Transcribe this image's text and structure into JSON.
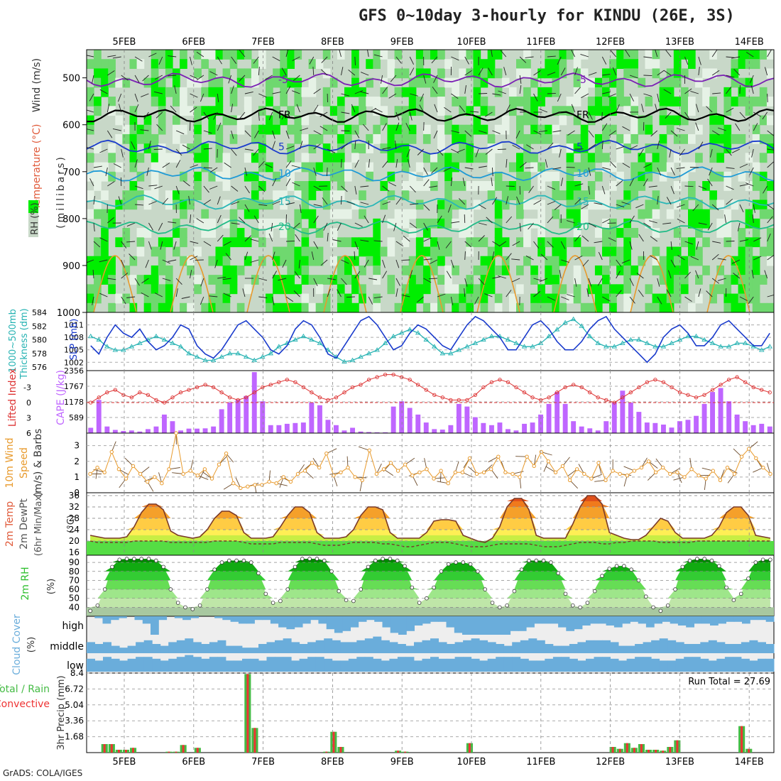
{
  "header": {
    "title": "GFS 0~10day 3-hourly for KINDU (26E, 3S)",
    "footer": "GrADS: COLA/IGES"
  },
  "colors": {
    "rh_light": "#e6f2e6",
    "rh_mid": "#6fd86f",
    "rh_bright": "#00ee00",
    "rh_dark": "#009900",
    "slp": "#1a3bcc",
    "thickness": "#27b3b3",
    "lifted_index": "#dd3333",
    "cape": "#bf66ff",
    "wind": "#e89a2c",
    "temp_fill": "#f07a1c",
    "rh2m": "#2fbf2f",
    "cloud": "#6aaddb",
    "total_precip": "#44bb44",
    "conv_precip": "#ee3333"
  },
  "chart_data": [
    {
      "type": "heatmap",
      "panel": "upper_air",
      "x_dates": [
        "5FEB",
        "6FEB",
        "7FEB",
        "8FEB",
        "9FEB",
        "10FEB",
        "11FEB",
        "12FEB",
        "13FEB",
        "14FEB"
      ],
      "ylabel_parts": [
        "RH (%)",
        "Temperature (°C)",
        "Wind (m/s)",
        "(millibars)"
      ],
      "yticks": [
        500,
        600,
        700,
        800,
        900,
        1000
      ],
      "ylim": [
        1000,
        440
      ],
      "isotherms": [
        {
          "label": "-5",
          "level": 505
        },
        {
          "label": "FR",
          "level": 580
        },
        {
          "label": "5",
          "level": 648
        },
        {
          "label": "10",
          "level": 705
        },
        {
          "label": "15",
          "level": 765
        },
        {
          "label": "20",
          "level": 818
        }
      ]
    },
    {
      "type": "line",
      "panel": "slp_thickness",
      "ylabel_left": "1000~500mb Thickness (dm)",
      "ylabel_right": "SLP (mb)",
      "yticks_left": [
        576,
        578,
        580,
        582,
        584
      ],
      "yticks_right": [
        1002,
        1005,
        1008,
        1011
      ],
      "slp": [
        1006,
        1004,
        1008,
        1011,
        1009,
        1008,
        1010,
        1007,
        1005,
        1006,
        1008,
        1011,
        1010,
        1006,
        1004,
        1003,
        1005,
        1008,
        1011,
        1012,
        1010,
        1008,
        1005,
        1004,
        1006,
        1010,
        1012,
        1011,
        1008,
        1004,
        1003,
        1006,
        1009,
        1012,
        1013,
        1011,
        1008,
        1005,
        1006,
        1009,
        1011,
        1010,
        1008,
        1006,
        1005,
        1008,
        1011,
        1013,
        1012,
        1010,
        1008,
        1005,
        1005,
        1008,
        1011,
        1012,
        1010,
        1007,
        1005,
        1005,
        1007,
        1010,
        1012,
        1013,
        1010,
        1008,
        1006,
        1004,
        1002,
        1004,
        1008,
        1010,
        1011,
        1009,
        1006,
        1006,
        1008,
        1011,
        1012,
        1010,
        1008,
        1006,
        1006,
        1009
      ],
      "thickness": [
        580.5,
        580,
        579,
        578.5,
        578.5,
        579,
        579.5,
        580,
        580.5,
        580,
        579.5,
        579,
        578,
        577.5,
        577,
        577,
        577.5,
        578,
        578,
        577.5,
        577,
        577.5,
        578,
        579,
        579.5,
        580,
        580.5,
        580,
        579.5,
        578.5,
        577.5,
        576.8,
        577,
        577.5,
        578,
        578.5,
        579.5,
        580.5,
        581,
        581.5,
        581,
        580,
        579,
        578,
        578,
        578.5,
        579,
        579.5,
        580,
        580.5,
        580.5,
        580,
        579.5,
        579,
        579,
        579.5,
        580.5,
        581.5,
        582.5,
        583,
        582,
        580.5,
        579.5,
        579,
        579,
        579.5,
        580,
        580,
        579.5,
        579,
        579,
        579.5,
        580,
        580.5,
        580.5,
        580,
        579.5,
        579,
        579,
        579.5,
        579.5,
        579,
        578.5,
        579
      ],
      "x_axis": "3-hourly steps"
    },
    {
      "type": "bar",
      "panel": "cape_lifted_index",
      "ylabel_left": "Lifted Index",
      "ylabel_right": "CAPE (J/kg)",
      "yticks_left": [
        -3,
        0,
        3,
        6
      ],
      "yticks_right": [
        589,
        1178,
        1767,
        2356
      ],
      "cape": [
        200,
        1250,
        250,
        120,
        80,
        100,
        60,
        150,
        250,
        700,
        450,
        100,
        170,
        170,
        180,
        250,
        900,
        1150,
        1250,
        1400,
        2300,
        1200,
        300,
        300,
        350,
        380,
        400,
        1150,
        1050,
        500,
        300,
        100,
        200,
        60,
        40,
        30,
        30,
        1000,
        1200,
        950,
        700,
        400,
        150,
        130,
        300,
        1100,
        1000,
        600,
        380,
        300,
        400,
        150,
        100,
        350,
        400,
        700,
        1100,
        1550,
        1100,
        450,
        250,
        180,
        100,
        450,
        1150,
        1600,
        1150,
        800,
        400,
        380,
        320,
        210,
        450,
        500,
        650,
        1100,
        1550,
        1700,
        1200,
        700,
        450,
        300,
        350,
        250
      ],
      "lifted_index": [
        0,
        -1,
        -2,
        -2.5,
        -1.5,
        -1,
        -2,
        -1.5,
        -0.5,
        0,
        -1,
        -2,
        -2.5,
        -3,
        -3.5,
        -3,
        -2,
        -1,
        -0.5,
        -1,
        -2,
        -3,
        -3.5,
        -4,
        -4.5,
        -4,
        -3,
        -2,
        -1,
        -0.5,
        -1,
        -2,
        -3,
        -3.5,
        -4.5,
        -5,
        -5.5,
        -5.5,
        -5,
        -4.5,
        -3.5,
        -2.5,
        -1.5,
        -1,
        -0.5,
        -0.5,
        -0.5,
        -1.5,
        -3,
        -4,
        -4.5,
        -4,
        -3,
        -2,
        -1,
        -0.5,
        -1,
        -2,
        -3,
        -3.5,
        -3,
        -2,
        -1,
        -0.5,
        0,
        -1,
        -2,
        -3,
        -4,
        -4.5,
        -4,
        -3,
        -2,
        -1.5,
        -1,
        -1.5,
        -2.5,
        -3.5,
        -4.5,
        -5,
        -4,
        -3,
        -2.5,
        -2
      ]
    },
    {
      "type": "line",
      "panel": "wind_10m",
      "ylabel": "10m Wind Speed & Barbs (m/s)",
      "yticks": [
        0,
        1,
        2,
        3
      ],
      "speed": [
        1.2,
        1.6,
        1.3,
        2.6,
        1.5,
        0.9,
        1.7,
        1.2,
        0.7,
        1.0,
        0.6,
        1.5,
        3.8,
        1.2,
        1.4,
        1.1,
        1.5,
        0.9,
        1.8,
        2.5,
        0.6,
        0.3,
        0.4,
        0.5,
        0.5,
        0.7,
        0.6,
        1.0,
        0.7,
        1.2,
        1.4,
        1.9,
        1.6,
        2.5,
        1.1,
        1.3,
        1.6,
        1.0,
        0.8,
        2.7,
        1.2,
        1.5,
        1.9,
        1.4,
        1.8,
        1.1,
        1.3,
        1.5,
        0.9,
        1.4,
        0.6,
        1.3,
        1.3,
        2.2,
        1.2,
        1.3,
        1.5,
        2.3,
        1.3,
        1.2,
        1.0,
        2.3,
        1.7,
        2.6,
        2.0,
        1.3,
        1.7,
        0.8,
        1.5,
        1.2,
        0.9,
        1.9,
        0.8,
        1.4,
        1.2,
        1.1,
        1.4,
        1.6,
        2.0,
        1.3,
        1.6,
        1.2,
        1.3,
        1.0,
        1.5,
        1.1,
        0.9,
        1.4,
        0.8,
        1.6,
        1.2,
        2.3,
        2.8,
        2.2,
        1.6,
        1.2
      ]
    },
    {
      "type": "area",
      "panel": "temp_2m",
      "ylabel": "2m Temp 2m DewPt (6hr Min/Max) (°C)",
      "yticks": [
        16,
        20,
        24,
        28,
        32,
        36
      ],
      "temp": [
        22,
        21.5,
        21,
        21,
        21,
        21.5,
        25,
        30,
        33,
        33,
        31,
        23.5,
        22,
        21.5,
        21,
        21.5,
        24,
        28,
        30.5,
        30.5,
        29,
        23,
        21,
        21,
        21,
        21.5,
        25,
        29,
        32,
        32,
        30,
        23,
        21,
        21,
        21,
        21.5,
        24,
        29,
        32,
        32,
        31,
        23,
        21,
        21,
        21,
        21,
        23,
        27,
        27.5,
        27.5,
        27,
        22,
        21,
        20,
        19.5,
        21,
        25,
        32,
        35,
        35,
        31,
        22,
        21,
        21,
        21,
        21,
        26,
        32,
        36,
        36,
        33,
        23,
        22,
        21,
        20.5,
        20.5,
        22,
        25,
        28,
        27,
        23,
        21,
        21,
        21,
        21,
        22,
        25,
        30,
        32,
        32,
        29,
        22,
        21.5,
        21
      ],
      "dewpt": [
        20,
        19.5,
        19.5,
        19.5,
        19.5,
        19.5,
        20,
        20,
        20,
        20,
        20,
        19.5,
        19.5,
        19.5,
        19.5,
        19.5,
        19.5,
        20,
        20,
        20,
        20,
        19.5,
        19,
        19,
        19,
        19,
        19.5,
        19.5,
        19.5,
        19.5,
        19.5,
        19,
        18.5,
        18.5,
        18.5,
        19,
        19.5,
        19.5,
        19.5,
        19.5,
        19,
        19,
        18.5,
        18,
        18,
        18.5,
        19,
        19.5,
        19.5,
        19.5,
        19,
        18.5,
        18,
        18,
        18,
        18.5,
        19,
        19,
        19,
        19,
        19,
        18.5,
        18,
        18,
        18,
        18.5,
        19,
        19.5,
        19.5,
        19.5,
        19,
        19,
        19.5,
        19.5,
        20,
        20,
        20,
        20,
        19.5,
        19.5,
        19.5,
        19.5,
        19.5,
        20,
        20,
        20,
        20,
        20,
        20,
        20,
        20,
        20,
        20,
        20
      ]
    },
    {
      "type": "area",
      "panel": "rh_2m",
      "ylabel": "2m RH (%)",
      "yticks": [
        40,
        50,
        60,
        70,
        80,
        90
      ],
      "rh": [
        36,
        42,
        60,
        85,
        93,
        94,
        94,
        94,
        94,
        92,
        85,
        60,
        45,
        40,
        38,
        42,
        60,
        82,
        90,
        92,
        92,
        92,
        90,
        78,
        55,
        45,
        47,
        60,
        85,
        94,
        94,
        94,
        92,
        80,
        58,
        48,
        47,
        60,
        85,
        92,
        94,
        94,
        92,
        86,
        62,
        45,
        50,
        62,
        80,
        88,
        90,
        90,
        88,
        80,
        60,
        45,
        40,
        42,
        58,
        82,
        92,
        92,
        92,
        90,
        78,
        55,
        42,
        40,
        45,
        58,
        75,
        83,
        86,
        86,
        82,
        70,
        52,
        40,
        36,
        42,
        60,
        85,
        92,
        94,
        94,
        92,
        86,
        62,
        48,
        55,
        72,
        90,
        93,
        93
      ]
    },
    {
      "type": "heatmap",
      "panel": "cloud_cover",
      "ylabel": "Cloud Cover (%)",
      "rows": [
        "high",
        "middle",
        "low"
      ],
      "high": [
        0,
        10,
        40,
        20,
        10,
        0,
        20,
        40,
        100,
        20,
        0,
        10,
        20,
        10,
        0,
        0,
        10,
        20,
        30,
        40,
        40,
        20,
        20,
        40,
        60,
        70,
        60,
        40,
        20,
        40,
        70,
        90,
        80,
        60,
        30,
        20,
        30,
        60,
        90,
        100,
        80,
        50,
        40,
        30,
        30,
        60,
        90,
        100,
        100,
        100,
        100,
        100,
        100,
        80,
        80,
        60,
        40,
        40,
        40,
        60,
        80,
        70,
        50,
        40,
        40,
        50,
        60,
        40,
        30,
        40,
        60,
        40,
        30,
        40,
        50,
        60,
        40,
        40,
        50,
        40,
        30,
        30,
        40,
        20,
        20,
        30
      ],
      "middle": [
        60,
        50,
        60,
        40,
        30,
        40,
        60,
        70,
        50,
        40,
        60,
        70,
        80,
        60,
        50,
        60,
        70,
        40,
        40,
        30,
        30,
        50,
        60,
        70,
        80,
        60,
        50,
        60,
        70,
        80,
        70,
        60,
        60,
        70,
        80,
        90,
        70,
        60,
        50,
        40,
        60,
        70,
        80,
        60,
        50,
        60,
        70,
        80,
        70,
        60,
        50,
        40,
        60,
        70,
        80,
        70,
        50,
        40,
        40,
        50,
        60,
        70,
        70,
        70,
        60,
        40,
        40,
        50,
        60,
        70,
        80,
        70,
        60,
        50,
        50,
        60,
        70,
        60,
        50,
        50,
        60,
        70,
        60,
        50
      ],
      "low": [
        70,
        60,
        80,
        70,
        60,
        70,
        80,
        80,
        70,
        60,
        70,
        80,
        90,
        80,
        70,
        80,
        80,
        60,
        60,
        70,
        70,
        60,
        80,
        80,
        80,
        60,
        70,
        80,
        80,
        70,
        60,
        60,
        70,
        80,
        80,
        70,
        60,
        70,
        80,
        80,
        60,
        70,
        80,
        70,
        70,
        80,
        80,
        70,
        60,
        70,
        80,
        80,
        80,
        70,
        60,
        60,
        70,
        80,
        80,
        70,
        60,
        70,
        80,
        80,
        70,
        60,
        70,
        80,
        80,
        70,
        60,
        60,
        70,
        80,
        80,
        70,
        60,
        70,
        80,
        80,
        70,
        60,
        70,
        70
      ]
    },
    {
      "type": "bar",
      "panel": "precip",
      "ylabel": "3hr Precip (mm)",
      "legend": [
        "Total",
        "Rain",
        "Convective"
      ],
      "legend_label": "Total / Rain Convective",
      "yticks": [
        1.68,
        3.36,
        5.04,
        6.72,
        8.4
      ],
      "run_total": "Run Total = 27.69",
      "total": [
        0,
        0,
        0.9,
        0.9,
        0.3,
        0.3,
        0.5,
        0,
        0,
        0,
        0,
        0.1,
        0.1,
        0.8,
        0,
        0.5,
        0,
        0,
        0,
        0,
        0,
        0,
        8.3,
        2.6,
        0,
        0,
        0,
        0,
        0,
        0,
        0,
        0,
        0,
        0.1,
        2.2,
        0.6,
        0,
        0,
        0,
        0,
        0,
        0,
        0,
        0.2,
        0.1,
        0,
        0,
        0,
        0,
        0,
        0,
        0,
        0,
        1.0,
        0,
        0,
        0,
        0,
        0,
        0,
        0,
        0,
        0,
        0,
        0,
        0,
        0,
        0,
        0,
        0,
        0,
        0,
        0,
        0.6,
        0.4,
        1.0,
        0.5,
        0.9,
        0.3,
        0.3,
        0.2,
        0.6,
        1.3,
        0,
        0,
        0,
        0,
        0,
        0,
        0,
        0,
        2.8,
        0.4,
        0,
        0,
        0
      ]
    }
  ],
  "axis": {
    "dates": [
      "5FEB",
      "6FEB",
      "7FEB",
      "8FEB",
      "9FEB",
      "10FEB",
      "11FEB",
      "12FEB",
      "13FEB",
      "14FEB"
    ]
  },
  "panel_labels": {
    "slp_left_a": "1000~500mb",
    "slp_left_b": "Thickness (dm)",
    "slp_right": "SLP (mb)",
    "li": "Lifted Index",
    "cape": "CAPE (J/kg)",
    "wind_a": "10m Wind",
    "wind_b": "Speed",
    "wind_c": "(m/s) & Barbs",
    "temp_a": "2m Temp",
    "temp_b": "2m DewPt",
    "temp_c": "(6hr Min/Max)",
    "temp_d": "(°C)",
    "rh_a": "2m RH",
    "rh_b": "(%)",
    "cloud_a": "Cloud Cover",
    "cloud_b": "(%)",
    "precip_a": "Total / Rain",
    "precip_b": "Convective",
    "precip_c": "3hr Precip (mm)",
    "upper_rh": "RH (%)",
    "upper_temp": "Temperature (°C)",
    "upper_wind": "Wind (m/s)",
    "upper_mb": "(millibars)"
  }
}
